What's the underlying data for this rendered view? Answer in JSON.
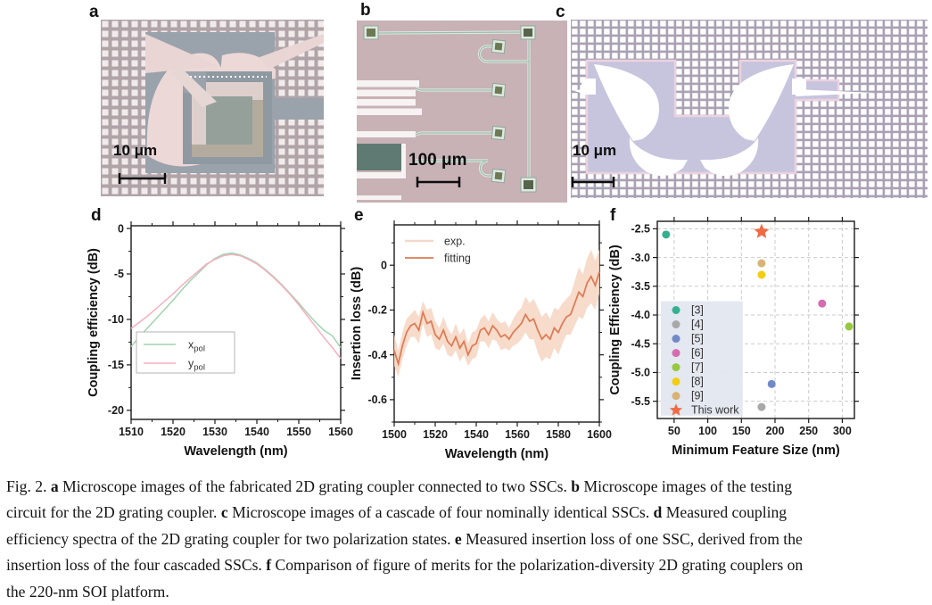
{
  "figure": {
    "panels": {
      "a": {
        "label": "a",
        "scale_bar": "10 μm",
        "description": "microscope image of 2D grating coupler"
      },
      "b": {
        "label": "b",
        "scale_bar": "100 μm",
        "description": "microscope image of testing circuit"
      },
      "c": {
        "label": "c",
        "scale_bar": "10 μm",
        "description": "microscope image of cascade of four SSCs"
      },
      "d": {
        "label": "d"
      },
      "e": {
        "label": "e"
      },
      "f": {
        "label": "f"
      }
    }
  },
  "caption": {
    "lines": [
      [
        {
          "t": "Fig. 2. ",
          "b": 0
        },
        {
          "t": "a",
          "b": 1
        },
        {
          "t": " Microscope images of the fabricated 2D grating coupler connected to two SSCs. ",
          "b": 0
        },
        {
          "t": "b",
          "b": 1
        },
        {
          "t": " Microscope images of the testing",
          "b": 0
        }
      ],
      [
        {
          "t": "circuit for the 2D grating coupler. ",
          "b": 0
        },
        {
          "t": "c",
          "b": 1
        },
        {
          "t": " Microscope images of a cascade of four nominally identical SSCs. ",
          "b": 0
        },
        {
          "t": "d",
          "b": 1
        },
        {
          "t": " Measured coupling",
          "b": 0
        }
      ],
      [
        {
          "t": "efficiency spectra of the 2D grating coupler for two polarization states. ",
          "b": 0
        },
        {
          "t": "e",
          "b": 1
        },
        {
          "t": " Measured insertion loss of one SSC, derived from the",
          "b": 0
        }
      ],
      [
        {
          "t": "insertion loss of the four cascaded SSCs. ",
          "b": 0
        },
        {
          "t": "f",
          "b": 1
        },
        {
          "t": " Comparison of figure of merits for the polarization-diversity 2D grating couplers on",
          "b": 0
        }
      ],
      [
        {
          "t": "the 220-nm SOI platform.",
          "b": 0
        }
      ]
    ]
  },
  "chart_data": [
    {
      "id": "d",
      "type": "line",
      "xlabel": "Wavelength (nm)",
      "ylabel": "Coupling efficiency (dB)",
      "xlim": [
        1510,
        1560
      ],
      "ylim": [
        -21,
        0.3
      ],
      "xticks": [
        {
          "v": 1510,
          "label": "1510"
        },
        {
          "v": 1520,
          "label": "1520"
        },
        {
          "v": 1530,
          "label": "1530"
        },
        {
          "v": 1540,
          "label": "1540"
        },
        {
          "v": 1550,
          "label": "1550"
        },
        {
          "v": 1560,
          "label": "1560"
        }
      ],
      "yticks": [
        {
          "v": 0,
          "label": "0"
        },
        {
          "v": -5,
          "label": "-5"
        },
        {
          "v": -10,
          "label": "-10"
        },
        {
          "v": -15,
          "label": "-15"
        },
        {
          "v": -20,
          "label": "-20"
        }
      ],
      "legend": [
        {
          "main": "x",
          "sub": "pol",
          "color": "#9fd4ae"
        },
        {
          "main": "y",
          "sub": "pol",
          "color": "#f7afc0"
        }
      ],
      "legend_position": "lower-left",
      "grid": "off",
      "series": [
        {
          "name": "x_pol",
          "color": "#9fd4ae",
          "x": [
            1510,
            1512,
            1514,
            1516,
            1518,
            1520,
            1522,
            1524,
            1526,
            1528,
            1530,
            1532,
            1534,
            1536,
            1538,
            1540,
            1542,
            1544,
            1546,
            1548,
            1550,
            1552,
            1554,
            1556,
            1558,
            1560
          ],
          "y": [
            -13.0,
            -11.9,
            -10.9,
            -9.9,
            -8.9,
            -7.9,
            -6.8,
            -5.8,
            -4.9,
            -4.0,
            -3.3,
            -2.85,
            -2.7,
            -2.9,
            -3.3,
            -3.8,
            -4.5,
            -5.3,
            -6.2,
            -7.2,
            -8.2,
            -9.3,
            -10.3,
            -11.2,
            -11.8,
            -13.1
          ]
        },
        {
          "name": "y_pol",
          "color": "#f7afc0",
          "x": [
            1510,
            1512,
            1514,
            1516,
            1518,
            1520,
            1522,
            1524,
            1526,
            1528,
            1530,
            1532,
            1534,
            1536,
            1538,
            1540,
            1542,
            1544,
            1546,
            1548,
            1550,
            1552,
            1554,
            1556,
            1558,
            1560
          ],
          "y": [
            -11.0,
            -10.3,
            -9.6,
            -8.8,
            -8.0,
            -7.2,
            -6.3,
            -5.5,
            -4.7,
            -3.9,
            -3.4,
            -3.0,
            -2.85,
            -3.0,
            -3.4,
            -3.9,
            -4.6,
            -5.4,
            -6.3,
            -7.3,
            -8.4,
            -9.6,
            -10.8,
            -12.0,
            -13.1,
            -14.3
          ]
        }
      ]
    },
    {
      "id": "e",
      "type": "line",
      "xlabel": "Wavelength (nm)",
      "ylabel": "Insertion loss (dB)",
      "xlim": [
        1500,
        1600
      ],
      "ylim": [
        -0.7,
        0.18
      ],
      "xticks": [
        {
          "v": 1500,
          "label": "1500"
        },
        {
          "v": 1520,
          "label": "1520"
        },
        {
          "v": 1540,
          "label": "1540"
        },
        {
          "v": 1560,
          "label": "1560"
        },
        {
          "v": 1580,
          "label": "1580"
        },
        {
          "v": 1600,
          "label": "1600"
        }
      ],
      "yticks": [
        {
          "v": 0,
          "label": "0"
        },
        {
          "v": -0.2,
          "label": "-0.2"
        },
        {
          "v": -0.4,
          "label": "-0.4"
        },
        {
          "v": -0.6,
          "label": "-0.6"
        }
      ],
      "legend": [
        {
          "label": "exp.",
          "color": "#f2d8c9"
        },
        {
          "label": "fitting",
          "color": "#dd7a52"
        }
      ],
      "legend_position": "upper-left",
      "grid": "off",
      "band_color": "#f6d7c5",
      "fit_color": "#dd7a52",
      "x": [
        1500,
        1502,
        1504,
        1506,
        1508,
        1510,
        1512,
        1514,
        1516,
        1518,
        1520,
        1522,
        1524,
        1526,
        1528,
        1530,
        1532,
        1534,
        1536,
        1538,
        1540,
        1542,
        1544,
        1546,
        1548,
        1550,
        1552,
        1554,
        1556,
        1558,
        1560,
        1562,
        1564,
        1566,
        1568,
        1570,
        1572,
        1574,
        1576,
        1578,
        1580,
        1582,
        1584,
        1586,
        1588,
        1590,
        1592,
        1594,
        1596,
        1598,
        1600
      ],
      "fitting": [
        -0.38,
        -0.44,
        -0.36,
        -0.3,
        -0.27,
        -0.26,
        -0.29,
        -0.21,
        -0.26,
        -0.25,
        -0.31,
        -0.33,
        -0.29,
        -0.34,
        -0.36,
        -0.32,
        -0.37,
        -0.34,
        -0.4,
        -0.36,
        -0.35,
        -0.29,
        -0.28,
        -0.31,
        -0.27,
        -0.29,
        -0.32,
        -0.31,
        -0.33,
        -0.3,
        -0.28,
        -0.26,
        -0.22,
        -0.25,
        -0.24,
        -0.29,
        -0.33,
        -0.31,
        -0.33,
        -0.28,
        -0.3,
        -0.26,
        -0.23,
        -0.22,
        -0.17,
        -0.12,
        -0.14,
        -0.08,
        -0.05,
        -0.09,
        -0.03
      ],
      "exp_halfwidth": [
        0.07,
        0.06,
        0.06,
        0.06,
        0.05,
        0.06,
        0.06,
        0.05,
        0.06,
        0.06,
        0.06,
        0.05,
        0.06,
        0.06,
        0.05,
        0.06,
        0.06,
        0.06,
        0.05,
        0.06,
        0.06,
        0.05,
        0.06,
        0.06,
        0.06,
        0.05,
        0.06,
        0.06,
        0.05,
        0.06,
        0.07,
        0.07,
        0.08,
        0.08,
        0.09,
        0.1,
        0.1,
        0.1,
        0.09,
        0.09,
        0.1,
        0.09,
        0.08,
        0.09,
        0.1,
        0.11,
        0.1,
        0.11,
        0.12,
        0.11,
        0.1
      ]
    },
    {
      "id": "f",
      "type": "scatter",
      "xlabel": "Minimum Feature Size (nm)",
      "ylabel": "Coupling Efficiency (dB)",
      "xlim": [
        25,
        318
      ],
      "ylim": [
        -5.8,
        -2.37
      ],
      "xticks": [
        {
          "v": 50,
          "label": "50"
        },
        {
          "v": 100,
          "label": "100"
        },
        {
          "v": 150,
          "label": "150"
        },
        {
          "v": 200,
          "label": "200"
        },
        {
          "v": 250,
          "label": "250"
        },
        {
          "v": 300,
          "label": "300"
        }
      ],
      "yticks": [
        {
          "v": -2.5,
          "label": "-2.5"
        },
        {
          "v": -3.0,
          "label": "-3.0"
        },
        {
          "v": -3.5,
          "label": "-3.5"
        },
        {
          "v": -4.0,
          "label": "-4.0"
        },
        {
          "v": -4.5,
          "label": "-4.5"
        },
        {
          "v": -5.0,
          "label": "-5.0"
        },
        {
          "v": -5.5,
          "label": "-5.5"
        }
      ],
      "grid": "dashed",
      "legend_bg": "#e3e7ef",
      "points": [
        {
          "label": "[3]",
          "x": 38,
          "y": -2.6,
          "color": "#35b08f",
          "marker": "circle"
        },
        {
          "label": "[4]",
          "x": 180,
          "y": -5.6,
          "color": "#a8a8a8",
          "marker": "circle"
        },
        {
          "label": "[5]",
          "x": 195,
          "y": -5.2,
          "color": "#7289c9",
          "marker": "circle"
        },
        {
          "label": "[6]",
          "x": 270,
          "y": -3.8,
          "color": "#d56bb0",
          "marker": "circle"
        },
        {
          "label": "[7]",
          "x": 310,
          "y": -4.2,
          "color": "#97c83e",
          "marker": "circle"
        },
        {
          "label": "[8]",
          "x": 180,
          "y": -3.3,
          "color": "#f3cd13",
          "marker": "circle"
        },
        {
          "label": "[9]",
          "x": 180,
          "y": -3.1,
          "color": "#d8b375",
          "marker": "circle"
        },
        {
          "label": "This work",
          "x": 180,
          "y": -2.55,
          "color": "#f26a44",
          "marker": "star"
        }
      ]
    }
  ]
}
